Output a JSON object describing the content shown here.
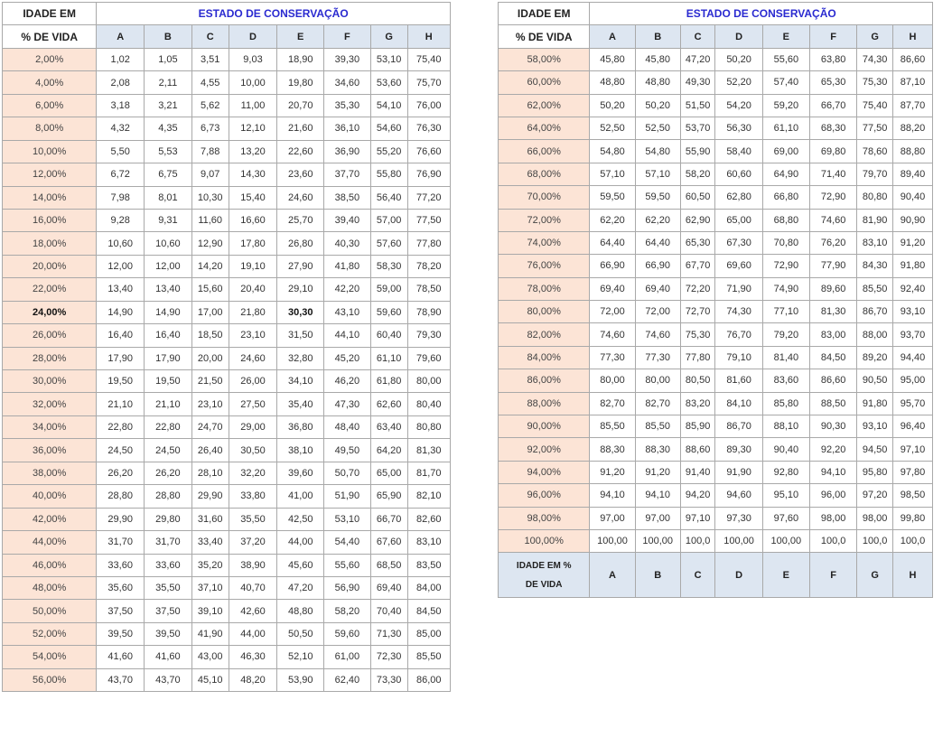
{
  "header": {
    "age_line1": "IDADE EM",
    "age_line2": "% DE VIDA",
    "state": "ESTADO DE CONSERVAÇÃO",
    "columns": [
      "A",
      "B",
      "C",
      "D",
      "E",
      "F",
      "G",
      "H"
    ]
  },
  "footer": {
    "label_line1": "IDADE EM %",
    "label_line2": "DE VIDA",
    "columns": [
      "A",
      "B",
      "C",
      "D",
      "E",
      "F",
      "G",
      "H"
    ]
  },
  "colors": {
    "state_title": "#2a2ad0",
    "header_bg": "#dde6f1",
    "age_bg": "#fce4d6",
    "border": "#a9a9a9"
  },
  "left_rows": [
    {
      "age": "2,00%",
      "values": [
        "1,02",
        "1,05",
        "3,51",
        "9,03",
        "18,90",
        "39,30",
        "53,10",
        "75,40"
      ]
    },
    {
      "age": "4,00%",
      "values": [
        "2,08",
        "2,11",
        "4,55",
        "10,00",
        "19,80",
        "34,60",
        "53,60",
        "75,70"
      ]
    },
    {
      "age": "6,00%",
      "values": [
        "3,18",
        "3,21",
        "5,62",
        "11,00",
        "20,70",
        "35,30",
        "54,10",
        "76,00"
      ]
    },
    {
      "age": "8,00%",
      "values": [
        "4,32",
        "4,35",
        "6,73",
        "12,10",
        "21,60",
        "36,10",
        "54,60",
        "76,30"
      ]
    },
    {
      "age": "10,00%",
      "values": [
        "5,50",
        "5,53",
        "7,88",
        "13,20",
        "22,60",
        "36,90",
        "55,20",
        "76,60"
      ]
    },
    {
      "age": "12,00%",
      "values": [
        "6,72",
        "6,75",
        "9,07",
        "14,30",
        "23,60",
        "37,70",
        "55,80",
        "76,90"
      ]
    },
    {
      "age": "14,00%",
      "values": [
        "7,98",
        "8,01",
        "10,30",
        "15,40",
        "24,60",
        "38,50",
        "56,40",
        "77,20"
      ]
    },
    {
      "age": "16,00%",
      "values": [
        "9,28",
        "9,31",
        "11,60",
        "16,60",
        "25,70",
        "39,40",
        "57,00",
        "77,50"
      ]
    },
    {
      "age": "18,00%",
      "values": [
        "10,60",
        "10,60",
        "12,90",
        "17,80",
        "26,80",
        "40,30",
        "57,60",
        "77,80"
      ]
    },
    {
      "age": "20,00%",
      "values": [
        "12,00",
        "12,00",
        "14,20",
        "19,10",
        "27,90",
        "41,80",
        "58,30",
        "78,20"
      ]
    },
    {
      "age": "22,00%",
      "values": [
        "13,40",
        "13,40",
        "15,60",
        "20,40",
        "29,10",
        "42,20",
        "59,00",
        "78,50"
      ]
    },
    {
      "age": "24,00%",
      "values": [
        "14,90",
        "14,90",
        "17,00",
        "21,80",
        "30,30",
        "43,10",
        "59,60",
        "78,90"
      ]
    },
    {
      "age": "26,00%",
      "values": [
        "16,40",
        "16,40",
        "18,50",
        "23,10",
        "31,50",
        "44,10",
        "60,40",
        "79,30"
      ]
    },
    {
      "age": "28,00%",
      "values": [
        "17,90",
        "17,90",
        "20,00",
        "24,60",
        "32,80",
        "45,20",
        "61,10",
        "79,60"
      ]
    },
    {
      "age": "30,00%",
      "values": [
        "19,50",
        "19,50",
        "21,50",
        "26,00",
        "34,10",
        "46,20",
        "61,80",
        "80,00"
      ]
    },
    {
      "age": "32,00%",
      "values": [
        "21,10",
        "21,10",
        "23,10",
        "27,50",
        "35,40",
        "47,30",
        "62,60",
        "80,40"
      ]
    },
    {
      "age": "34,00%",
      "values": [
        "22,80",
        "22,80",
        "24,70",
        "29,00",
        "36,80",
        "48,40",
        "63,40",
        "80,80"
      ]
    },
    {
      "age": "36,00%",
      "values": [
        "24,50",
        "24,50",
        "26,40",
        "30,50",
        "38,10",
        "49,50",
        "64,20",
        "81,30"
      ]
    },
    {
      "age": "38,00%",
      "values": [
        "26,20",
        "26,20",
        "28,10",
        "32,20",
        "39,60",
        "50,70",
        "65,00",
        "81,70"
      ]
    },
    {
      "age": "40,00%",
      "values": [
        "28,80",
        "28,80",
        "29,90",
        "33,80",
        "41,00",
        "51,90",
        "65,90",
        "82,10"
      ]
    },
    {
      "age": "42,00%",
      "values": [
        "29,90",
        "29,80",
        "31,60",
        "35,50",
        "42,50",
        "53,10",
        "66,70",
        "82,60"
      ]
    },
    {
      "age": "44,00%",
      "values": [
        "31,70",
        "31,70",
        "33,40",
        "37,20",
        "44,00",
        "54,40",
        "67,60",
        "83,10"
      ]
    },
    {
      "age": "46,00%",
      "values": [
        "33,60",
        "33,60",
        "35,20",
        "38,90",
        "45,60",
        "55,60",
        "68,50",
        "83,50"
      ]
    },
    {
      "age": "48,00%",
      "values": [
        "35,60",
        "35,50",
        "37,10",
        "40,70",
        "47,20",
        "56,90",
        "69,40",
        "84,00"
      ]
    },
    {
      "age": "50,00%",
      "values": [
        "37,50",
        "37,50",
        "39,10",
        "42,60",
        "48,80",
        "58,20",
        "70,40",
        "84,50"
      ]
    },
    {
      "age": "52,00%",
      "values": [
        "39,50",
        "39,50",
        "41,90",
        "44,00",
        "50,50",
        "59,60",
        "71,30",
        "85,00"
      ]
    },
    {
      "age": "54,00%",
      "values": [
        "41,60",
        "41,60",
        "43,00",
        "46,30",
        "52,10",
        "61,00",
        "72,30",
        "85,50"
      ]
    },
    {
      "age": "56,00%",
      "values": [
        "43,70",
        "43,70",
        "45,10",
        "48,20",
        "53,90",
        "62,40",
        "73,30",
        "86,00"
      ]
    }
  ],
  "right_rows": [
    {
      "age": "58,00%",
      "values": [
        "45,80",
        "45,80",
        "47,20",
        "50,20",
        "55,60",
        "63,80",
        "74,30",
        "86,60"
      ]
    },
    {
      "age": "60,00%",
      "values": [
        "48,80",
        "48,80",
        "49,30",
        "52,20",
        "57,40",
        "65,30",
        "75,30",
        "87,10"
      ]
    },
    {
      "age": "62,00%",
      "values": [
        "50,20",
        "50,20",
        "51,50",
        "54,20",
        "59,20",
        "66,70",
        "75,40",
        "87,70"
      ]
    },
    {
      "age": "64,00%",
      "values": [
        "52,50",
        "52,50",
        "53,70",
        "56,30",
        "61,10",
        "68,30",
        "77,50",
        "88,20"
      ]
    },
    {
      "age": "66,00%",
      "values": [
        "54,80",
        "54,80",
        "55,90",
        "58,40",
        "69,00",
        "69,80",
        "78,60",
        "88,80"
      ]
    },
    {
      "age": "68,00%",
      "values": [
        "57,10",
        "57,10",
        "58,20",
        "60,60",
        "64,90",
        "71,40",
        "79,70",
        "89,40"
      ]
    },
    {
      "age": "70,00%",
      "values": [
        "59,50",
        "59,50",
        "60,50",
        "62,80",
        "66,80",
        "72,90",
        "80,80",
        "90,40"
      ]
    },
    {
      "age": "72,00%",
      "values": [
        "62,20",
        "62,20",
        "62,90",
        "65,00",
        "68,80",
        "74,60",
        "81,90",
        "90,90"
      ]
    },
    {
      "age": "74,00%",
      "values": [
        "64,40",
        "64,40",
        "65,30",
        "67,30",
        "70,80",
        "76,20",
        "83,10",
        "91,20"
      ]
    },
    {
      "age": "76,00%",
      "values": [
        "66,90",
        "66,90",
        "67,70",
        "69,60",
        "72,90",
        "77,90",
        "84,30",
        "91,80"
      ]
    },
    {
      "age": "78,00%",
      "values": [
        "69,40",
        "69,40",
        "72,20",
        "71,90",
        "74,90",
        "89,60",
        "85,50",
        "92,40"
      ]
    },
    {
      "age": "80,00%",
      "values": [
        "72,00",
        "72,00",
        "72,70",
        "74,30",
        "77,10",
        "81,30",
        "86,70",
        "93,10"
      ]
    },
    {
      "age": "82,00%",
      "values": [
        "74,60",
        "74,60",
        "75,30",
        "76,70",
        "79,20",
        "83,00",
        "88,00",
        "93,70"
      ]
    },
    {
      "age": "84,00%",
      "values": [
        "77,30",
        "77,30",
        "77,80",
        "79,10",
        "81,40",
        "84,50",
        "89,20",
        "94,40"
      ]
    },
    {
      "age": "86,00%",
      "values": [
        "80,00",
        "80,00",
        "80,50",
        "81,60",
        "83,60",
        "86,60",
        "90,50",
        "95,00"
      ]
    },
    {
      "age": "88,00%",
      "values": [
        "82,70",
        "82,70",
        "83,20",
        "84,10",
        "85,80",
        "88,50",
        "91,80",
        "95,70"
      ]
    },
    {
      "age": "90,00%",
      "values": [
        "85,50",
        "85,50",
        "85,90",
        "86,70",
        "88,10",
        "90,30",
        "93,10",
        "96,40"
      ]
    },
    {
      "age": "92,00%",
      "values": [
        "88,30",
        "88,30",
        "88,60",
        "89,30",
        "90,40",
        "92,20",
        "94,50",
        "97,10"
      ]
    },
    {
      "age": "94,00%",
      "values": [
        "91,20",
        "91,20",
        "91,40",
        "91,90",
        "92,80",
        "94,10",
        "95,80",
        "97,80"
      ]
    },
    {
      "age": "96,00%",
      "values": [
        "94,10",
        "94,10",
        "94,20",
        "94,60",
        "95,10",
        "96,00",
        "97,20",
        "98,50"
      ]
    },
    {
      "age": "98,00%",
      "values": [
        "97,00",
        "97,00",
        "97,10",
        "97,30",
        "97,60",
        "98,00",
        "98,00",
        "99,80"
      ]
    },
    {
      "age": "100,00%",
      "values": [
        "100,00",
        "100,00",
        "100,0",
        "100,00",
        "100,00",
        "100,0",
        "100,0",
        "100,0"
      ]
    }
  ],
  "bold_row_age": "24,00%",
  "bold_col_index": 4
}
